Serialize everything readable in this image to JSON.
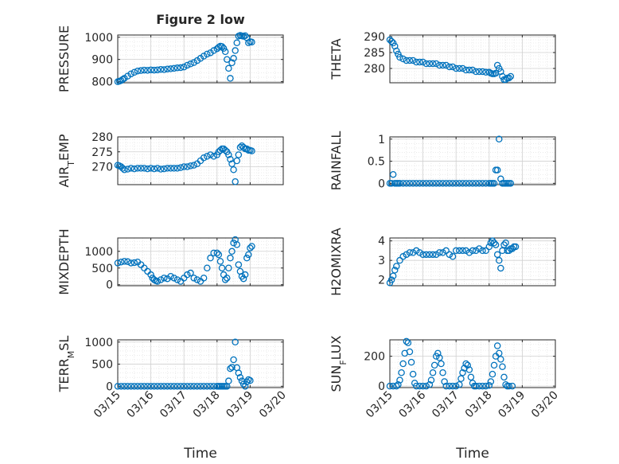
{
  "figure_title": "Figure 2 low",
  "xlabel": "Time",
  "x_tick_labels": [
    "03/15",
    "03/16",
    "03/17",
    "03/18",
    "03/19",
    "03/20"
  ],
  "colors": {
    "marker": "#0072BD",
    "axis": "#262626",
    "grid": "#dedede"
  },
  "chart_data": [
    {
      "type": "scatter",
      "id": "pressure",
      "ylabel": "PRESSURE",
      "ylim": [
        795,
        1010
      ],
      "yticks": [
        800,
        900,
        1000
      ],
      "grid": true,
      "minor_grid": true,
      "x": [
        0.0,
        0.05,
        0.1,
        0.15,
        0.2,
        0.3,
        0.4,
        0.5,
        0.6,
        0.7,
        0.8,
        0.9,
        1.0,
        1.1,
        1.2,
        1.3,
        1.4,
        1.5,
        1.6,
        1.7,
        1.8,
        1.9,
        2.0,
        2.1,
        2.2,
        2.3,
        2.4,
        2.5,
        2.6,
        2.7,
        2.8,
        2.9,
        3.0,
        3.05,
        3.1,
        3.15,
        3.2,
        3.25,
        3.3,
        3.35,
        3.4,
        3.45,
        3.5,
        3.55,
        3.6,
        3.65,
        3.7,
        3.75,
        3.8,
        3.85,
        3.9,
        3.95,
        4.0,
        4.05
      ],
      "y": [
        800,
        802,
        805,
        810,
        815,
        825,
        835,
        842,
        848,
        850,
        852,
        851,
        853,
        852,
        853,
        855,
        854,
        857,
        858,
        860,
        862,
        863,
        866,
        874,
        880,
        886,
        895,
        905,
        915,
        924,
        930,
        940,
        948,
        955,
        960,
        958,
        950,
        935,
        900,
        860,
        815,
        885,
        905,
        940,
        975,
        1005,
        1008,
        1006,
        1004,
        1007,
        998,
        975,
        980,
        978
      ]
    },
    {
      "type": "scatter",
      "id": "theta",
      "ylabel": "THETA",
      "ylim": [
        275.5,
        290.5
      ],
      "yticks": [
        280,
        285,
        290
      ],
      "grid": true,
      "minor_grid": true,
      "x": [
        0.0,
        0.05,
        0.1,
        0.15,
        0.2,
        0.25,
        0.3,
        0.4,
        0.5,
        0.6,
        0.7,
        0.8,
        0.9,
        1.0,
        1.1,
        1.2,
        1.3,
        1.4,
        1.5,
        1.6,
        1.7,
        1.8,
        1.9,
        2.0,
        2.1,
        2.2,
        2.3,
        2.4,
        2.5,
        2.6,
        2.7,
        2.8,
        2.9,
        3.0,
        3.05,
        3.1,
        3.15,
        3.2,
        3.25,
        3.3,
        3.35,
        3.4,
        3.45,
        3.5,
        3.55,
        3.6,
        3.65
      ],
      "y": [
        289,
        288.5,
        288,
        287,
        285.5,
        284.5,
        283.5,
        283,
        282.5,
        282.5,
        282.5,
        282,
        282,
        282,
        281.5,
        281.5,
        281.5,
        281.5,
        281,
        281,
        281,
        280.5,
        280.5,
        280,
        280,
        280,
        279.5,
        279.5,
        279.5,
        279,
        279,
        279,
        278.8,
        278.8,
        278.5,
        278.3,
        278.3,
        278.5,
        281,
        280,
        279,
        277.5,
        276.5,
        276.5,
        277,
        277,
        277.5
      ]
    },
    {
      "type": "scatter",
      "id": "air_temp",
      "ylabel": "AIR_TEMP",
      "ylim": [
        264,
        280
      ],
      "yticks": [
        270,
        275,
        280
      ],
      "grid": true,
      "minor_grid": true,
      "x": [
        0.0,
        0.05,
        0.1,
        0.15,
        0.2,
        0.3,
        0.4,
        0.5,
        0.6,
        0.7,
        0.8,
        0.9,
        1.0,
        1.1,
        1.2,
        1.3,
        1.4,
        1.5,
        1.6,
        1.7,
        1.8,
        1.9,
        2.0,
        2.1,
        2.2,
        2.3,
        2.4,
        2.5,
        2.6,
        2.7,
        2.8,
        2.9,
        3.0,
        3.05,
        3.1,
        3.15,
        3.2,
        3.25,
        3.3,
        3.35,
        3.4,
        3.45,
        3.5,
        3.55,
        3.6,
        3.65,
        3.7,
        3.75,
        3.8,
        3.85,
        3.9,
        3.95,
        4.0,
        4.05
      ],
      "y": [
        270.5,
        270.3,
        270,
        269.5,
        269,
        269.2,
        269.5,
        269.3,
        269.5,
        269.5,
        269.5,
        269.3,
        269.5,
        269.3,
        269.5,
        269.2,
        269.3,
        269.5,
        269.5,
        269.5,
        269.5,
        269.7,
        270,
        270,
        270.3,
        270.5,
        271,
        272,
        273,
        273.5,
        274,
        273.5,
        274,
        275,
        275.5,
        276,
        276,
        275.5,
        275,
        274,
        272.5,
        271,
        269,
        265,
        272,
        274,
        276.5,
        277,
        276.5,
        276,
        276,
        275.5,
        275.5,
        275.3
      ]
    },
    {
      "type": "scatter",
      "id": "rainfall",
      "ylabel": "RAINFALL",
      "ylim": [
        -0.03,
        1.05
      ],
      "yticks": [
        0,
        0.5,
        1
      ],
      "ytick_labels": [
        "0",
        "0.5",
        "1"
      ],
      "grid": true,
      "minor_grid": true,
      "x": [
        0.0,
        0.05,
        0.1,
        0.15,
        0.2,
        0.25,
        0.3,
        0.4,
        0.5,
        0.6,
        0.7,
        0.8,
        0.9,
        1.0,
        1.1,
        1.2,
        1.3,
        1.4,
        1.5,
        1.6,
        1.7,
        1.8,
        1.9,
        2.0,
        2.1,
        2.2,
        2.3,
        2.4,
        2.5,
        2.6,
        2.7,
        2.8,
        2.9,
        3.0,
        3.05,
        3.1,
        3.15,
        3.2,
        3.25,
        3.3,
        3.35,
        3.4,
        3.45,
        3.5,
        3.55,
        3.6,
        3.65
      ],
      "y": [
        0,
        0,
        0.2,
        0,
        0,
        0,
        0,
        0,
        0,
        0,
        0,
        0,
        0,
        0,
        0,
        0,
        0,
        0,
        0,
        0,
        0,
        0,
        0,
        0,
        0,
        0,
        0,
        0,
        0,
        0,
        0,
        0,
        0,
        0,
        0,
        0,
        0,
        0.3,
        0.3,
        1.0,
        0.1,
        0,
        0,
        0,
        0,
        0,
        0
      ]
    },
    {
      "type": "scatter",
      "id": "mixdepth",
      "ylabel": "MIXDEPTH",
      "ylim": [
        -30,
        1400
      ],
      "yticks": [
        0,
        500,
        1000
      ],
      "grid": true,
      "minor_grid": true,
      "x": [
        0.0,
        0.1,
        0.2,
        0.3,
        0.4,
        0.5,
        0.6,
        0.7,
        0.8,
        0.9,
        1.0,
        1.05,
        1.1,
        1.15,
        1.2,
        1.3,
        1.4,
        1.5,
        1.6,
        1.7,
        1.8,
        1.9,
        2.0,
        2.1,
        2.2,
        2.3,
        2.4,
        2.5,
        2.6,
        2.7,
        2.8,
        2.9,
        3.0,
        3.05,
        3.1,
        3.15,
        3.2,
        3.25,
        3.3,
        3.35,
        3.4,
        3.45,
        3.5,
        3.55,
        3.6,
        3.65,
        3.7,
        3.75,
        3.8,
        3.85,
        3.9,
        3.95,
        4.0,
        4.05
      ],
      "y": [
        650,
        680,
        700,
        690,
        650,
        660,
        680,
        600,
        500,
        400,
        300,
        200,
        150,
        120,
        100,
        150,
        200,
        180,
        250,
        200,
        150,
        100,
        200,
        300,
        350,
        200,
        150,
        100,
        200,
        500,
        800,
        950,
        950,
        900,
        700,
        500,
        300,
        150,
        200,
        500,
        800,
        1000,
        1250,
        1350,
        1200,
        600,
        400,
        250,
        180,
        300,
        800,
        900,
        1100,
        1150
      ]
    },
    {
      "type": "scatter",
      "id": "h2omixra",
      "ylabel": "H2OMIXRA",
      "ylim": [
        1.7,
        4.15
      ],
      "yticks": [
        2,
        3,
        4
      ],
      "grid": true,
      "minor_grid": true,
      "x": [
        0.0,
        0.05,
        0.1,
        0.15,
        0.2,
        0.3,
        0.4,
        0.5,
        0.6,
        0.7,
        0.8,
        0.9,
        1.0,
        1.1,
        1.2,
        1.3,
        1.4,
        1.5,
        1.6,
        1.7,
        1.8,
        1.9,
        2.0,
        2.1,
        2.2,
        2.3,
        2.4,
        2.5,
        2.6,
        2.7,
        2.8,
        2.9,
        3.0,
        3.05,
        3.1,
        3.15,
        3.2,
        3.25,
        3.3,
        3.35,
        3.4,
        3.45,
        3.5,
        3.55,
        3.6,
        3.65,
        3.7,
        3.75,
        3.8
      ],
      "y": [
        1.85,
        2.0,
        2.2,
        2.5,
        2.7,
        3.0,
        3.2,
        3.3,
        3.4,
        3.4,
        3.5,
        3.4,
        3.3,
        3.3,
        3.3,
        3.3,
        3.3,
        3.4,
        3.4,
        3.5,
        3.3,
        3.2,
        3.5,
        3.5,
        3.5,
        3.5,
        3.4,
        3.5,
        3.5,
        3.6,
        3.5,
        3.5,
        3.7,
        3.9,
        4.0,
        3.9,
        3.8,
        3.3,
        3.0,
        2.6,
        3.5,
        3.8,
        3.9,
        3.5,
        3.5,
        3.6,
        3.6,
        3.7,
        3.7
      ]
    },
    {
      "type": "scatter",
      "id": "terr_msl",
      "ylabel": "TERR_MSL",
      "ylim": [
        -30,
        1050
      ],
      "yticks": [
        0,
        500,
        1000
      ],
      "grid": true,
      "minor_grid": true,
      "x": [
        0.0,
        0.1,
        0.2,
        0.3,
        0.4,
        0.5,
        0.6,
        0.7,
        0.8,
        0.9,
        1.0,
        1.1,
        1.2,
        1.3,
        1.4,
        1.5,
        1.6,
        1.7,
        1.8,
        1.9,
        2.0,
        2.1,
        2.2,
        2.3,
        2.4,
        2.5,
        2.6,
        2.7,
        2.8,
        2.9,
        3.0,
        3.05,
        3.1,
        3.15,
        3.2,
        3.25,
        3.3,
        3.35,
        3.4,
        3.45,
        3.5,
        3.55,
        3.6,
        3.65,
        3.7,
        3.75,
        3.8,
        3.85,
        3.9,
        3.95,
        4.0
      ],
      "y": [
        0,
        0,
        0,
        0,
        0,
        0,
        0,
        0,
        0,
        0,
        0,
        0,
        0,
        0,
        0,
        0,
        0,
        0,
        0,
        0,
        0,
        0,
        0,
        0,
        0,
        0,
        0,
        0,
        0,
        0,
        0,
        0,
        0,
        0,
        0,
        0,
        0,
        120,
        400,
        430,
        600,
        1000,
        420,
        300,
        200,
        120,
        50,
        0,
        100,
        150,
        130
      ]
    },
    {
      "type": "scatter",
      "id": "sun_flux",
      "ylabel": "SUN_FLUX",
      "ylim": [
        -10,
        310
      ],
      "yticks": [
        0,
        200
      ],
      "grid": true,
      "minor_grid": true,
      "x": [
        0.0,
        0.1,
        0.2,
        0.25,
        0.3,
        0.35,
        0.4,
        0.45,
        0.5,
        0.55,
        0.6,
        0.65,
        0.7,
        0.75,
        0.8,
        0.9,
        1.0,
        1.1,
        1.2,
        1.25,
        1.3,
        1.35,
        1.4,
        1.45,
        1.5,
        1.55,
        1.6,
        1.65,
        1.7,
        1.8,
        1.9,
        2.0,
        2.1,
        2.15,
        2.2,
        2.25,
        2.3,
        2.35,
        2.4,
        2.45,
        2.5,
        2.55,
        2.6,
        2.7,
        2.8,
        2.9,
        3.0,
        3.05,
        3.1,
        3.15,
        3.2,
        3.25,
        3.3,
        3.35,
        3.4,
        3.45,
        3.5,
        3.55,
        3.6,
        3.7
      ],
      "y": [
        0,
        0,
        0,
        10,
        40,
        90,
        150,
        220,
        300,
        290,
        230,
        160,
        80,
        20,
        0,
        0,
        0,
        0,
        10,
        40,
        90,
        140,
        200,
        220,
        190,
        150,
        90,
        30,
        0,
        0,
        0,
        0,
        10,
        50,
        90,
        120,
        150,
        140,
        110,
        60,
        20,
        0,
        0,
        0,
        0,
        0,
        5,
        30,
        80,
        140,
        200,
        270,
        220,
        180,
        130,
        60,
        10,
        0,
        0,
        0
      ]
    }
  ]
}
